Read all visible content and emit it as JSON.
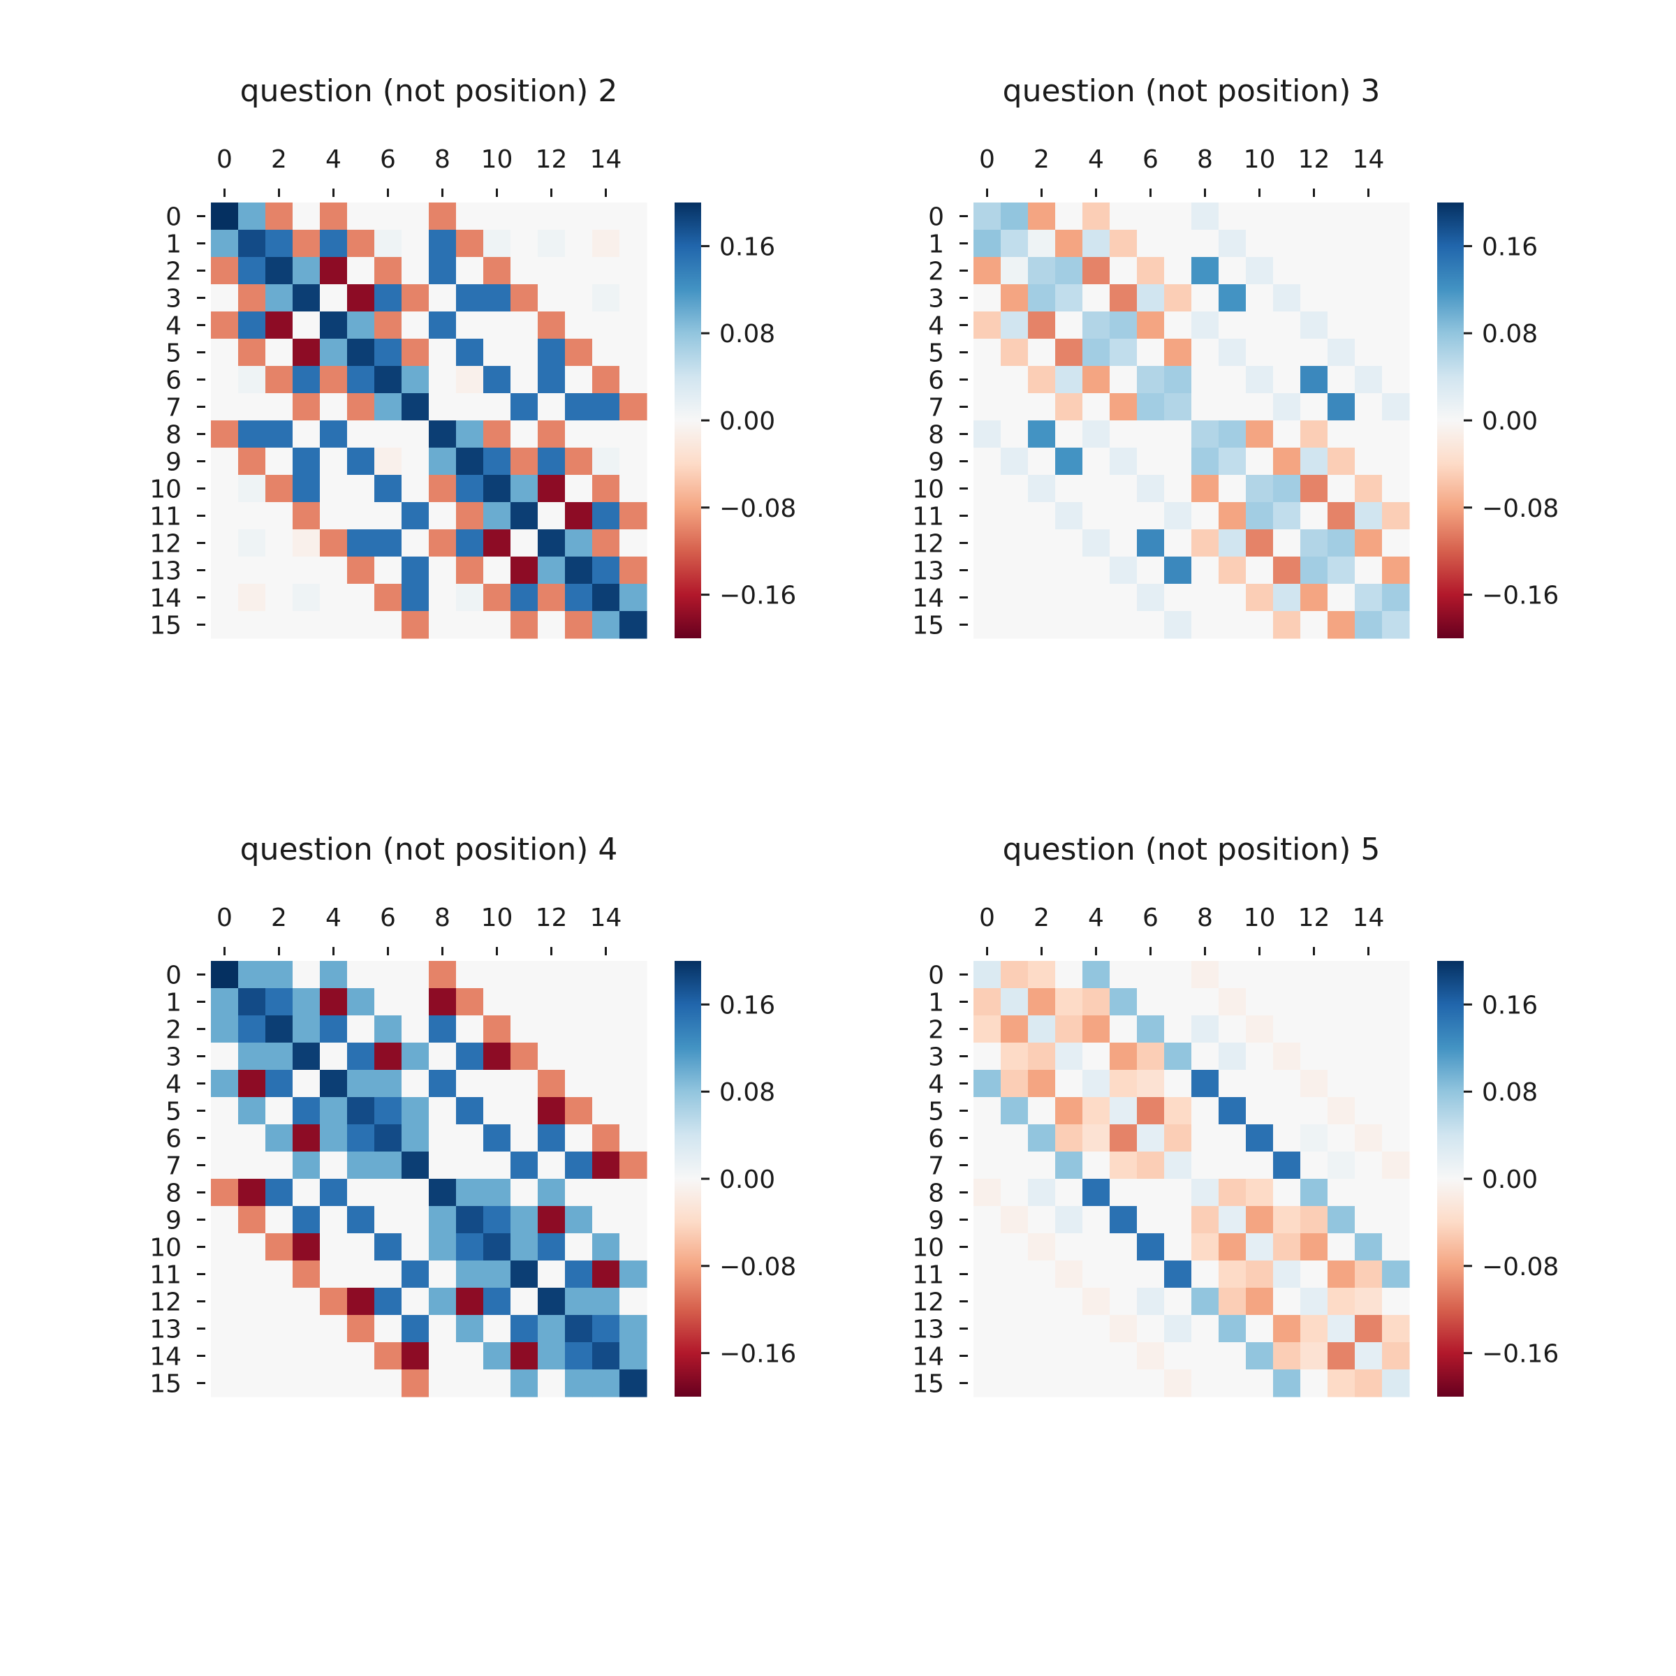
{
  "chart_data": [
    {
      "type": "heatmap",
      "title": "question (not position) 2",
      "x_ticks": [
        "0",
        "2",
        "4",
        "6",
        "8",
        "10",
        "12",
        "14"
      ],
      "y_ticks": [
        "0",
        "1",
        "2",
        "3",
        "4",
        "5",
        "6",
        "7",
        "8",
        "9",
        "10",
        "11",
        "12",
        "13",
        "14",
        "15"
      ],
      "colorbar_ticks": [
        "0.16",
        "0.08",
        "0.00",
        "−0.08",
        "−0.16"
      ],
      "vmin": -0.2,
      "vmax": 0.2,
      "colormap": "RdBu",
      "x_tick_position": "top",
      "values": [
        [
          0.2,
          0.1,
          -0.1,
          0,
          -0.1,
          0,
          0,
          0,
          -0.1,
          0,
          0,
          0,
          0,
          0,
          0,
          0
        ],
        [
          0.1,
          0.18,
          0.15,
          -0.1,
          0.15,
          -0.1,
          0.01,
          0,
          0.15,
          -0.1,
          0.01,
          0,
          0.01,
          0,
          -0.01,
          0
        ],
        [
          -0.1,
          0.15,
          0.19,
          0.1,
          -0.18,
          0,
          -0.1,
          0,
          0.15,
          0,
          -0.1,
          0,
          0,
          0,
          0,
          0
        ],
        [
          0,
          -0.1,
          0.1,
          0.19,
          0,
          -0.18,
          0.15,
          -0.1,
          0,
          0.15,
          0.15,
          -0.1,
          0,
          0,
          0.01,
          0
        ],
        [
          -0.1,
          0.15,
          -0.18,
          0,
          0.19,
          0.1,
          -0.1,
          0,
          0.15,
          0,
          0,
          0,
          -0.1,
          0,
          0,
          0
        ],
        [
          0,
          -0.1,
          0,
          -0.18,
          0.1,
          0.19,
          0.15,
          -0.1,
          0,
          0.15,
          0,
          0,
          0.15,
          -0.1,
          0,
          0
        ],
        [
          0,
          0.01,
          -0.1,
          0.15,
          -0.1,
          0.15,
          0.19,
          0.1,
          0,
          -0.01,
          0.15,
          0,
          0.15,
          0,
          -0.1,
          0
        ],
        [
          0,
          0,
          0,
          -0.1,
          0,
          -0.1,
          0.1,
          0.19,
          0,
          0,
          0,
          0.15,
          0,
          0.15,
          0.15,
          -0.1
        ],
        [
          -0.1,
          0.15,
          0.15,
          0,
          0.15,
          0,
          0,
          0,
          0.19,
          0.1,
          -0.1,
          0,
          -0.1,
          0,
          0,
          0
        ],
        [
          0,
          -0.1,
          0,
          0.15,
          0,
          0.15,
          -0.01,
          0,
          0.1,
          0.19,
          0.15,
          -0.1,
          0.15,
          -0.1,
          0.01,
          0
        ],
        [
          0,
          0.01,
          -0.1,
          0.15,
          0,
          0,
          0.15,
          0,
          -0.1,
          0.15,
          0.19,
          0.1,
          -0.18,
          0,
          -0.1,
          0
        ],
        [
          0,
          0,
          0,
          -0.1,
          0,
          0,
          0,
          0.15,
          0,
          -0.1,
          0.1,
          0.19,
          0,
          -0.18,
          0.15,
          -0.1
        ],
        [
          0,
          0.01,
          0,
          -0.01,
          -0.1,
          0.15,
          0.15,
          0,
          -0.1,
          0.15,
          -0.18,
          0,
          0.19,
          0.1,
          -0.1,
          0
        ],
        [
          0,
          0,
          0,
          0,
          0,
          -0.1,
          0,
          0.15,
          0,
          -0.1,
          0,
          -0.18,
          0.1,
          0.19,
          0.15,
          -0.1
        ],
        [
          0,
          -0.01,
          0,
          0.01,
          0,
          0,
          -0.1,
          0.15,
          0,
          0.01,
          -0.1,
          0.15,
          -0.1,
          0.15,
          0.19,
          0.1
        ],
        [
          0,
          0,
          0,
          0,
          0,
          0,
          0,
          -0.1,
          0,
          0,
          0,
          -0.1,
          0,
          -0.1,
          0.1,
          0.19
        ]
      ]
    },
    {
      "type": "heatmap",
      "title": "question (not position) 3",
      "x_ticks": [
        "0",
        "2",
        "4",
        "6",
        "8",
        "10",
        "12",
        "14"
      ],
      "y_ticks": [
        "0",
        "1",
        "2",
        "3",
        "4",
        "5",
        "6",
        "7",
        "8",
        "9",
        "10",
        "11",
        "12",
        "13",
        "14",
        "15"
      ],
      "colorbar_ticks": [
        "0.16",
        "0.08",
        "0.00",
        "−0.08",
        "−0.16"
      ],
      "vmin": -0.2,
      "vmax": 0.2,
      "colormap": "RdBu",
      "x_tick_position": "top",
      "values": [
        [
          0.06,
          0.08,
          -0.08,
          0,
          -0.05,
          0,
          0,
          0,
          0.02,
          0,
          0,
          0,
          0,
          0,
          0,
          0
        ],
        [
          0.08,
          0.05,
          0.01,
          -0.08,
          0.04,
          -0.05,
          0,
          0,
          0,
          0.02,
          0,
          0,
          0,
          0,
          0,
          0
        ],
        [
          -0.08,
          0.01,
          0.06,
          0.07,
          -0.1,
          0,
          -0.05,
          0,
          0.12,
          0,
          0.02,
          0,
          0,
          0,
          0,
          0
        ],
        [
          0,
          -0.08,
          0.07,
          0.05,
          0,
          -0.1,
          0.04,
          -0.05,
          0,
          0.12,
          0,
          0.02,
          0,
          0,
          0,
          0
        ],
        [
          -0.05,
          0.04,
          -0.1,
          0,
          0.06,
          0.07,
          -0.08,
          0,
          0.02,
          0,
          0,
          0,
          0.02,
          0,
          0,
          0
        ],
        [
          0,
          -0.05,
          0,
          -0.1,
          0.07,
          0.05,
          0,
          -0.08,
          0,
          0.02,
          0,
          0,
          0,
          0.02,
          0,
          0
        ],
        [
          0,
          0,
          -0.05,
          0.04,
          -0.08,
          0,
          0.06,
          0.07,
          0,
          0,
          0.02,
          0,
          0.13,
          0,
          0.02,
          0
        ],
        [
          0,
          0,
          0,
          -0.05,
          0,
          -0.08,
          0.07,
          0.06,
          0,
          0,
          0,
          0.02,
          0,
          0.13,
          0,
          0.02
        ],
        [
          0.02,
          0,
          0.12,
          0,
          0.02,
          0,
          0,
          0,
          0.06,
          0.07,
          -0.08,
          0,
          -0.05,
          0,
          0,
          0
        ],
        [
          0,
          0.02,
          0,
          0.12,
          0,
          0.02,
          0,
          0,
          0.07,
          0.05,
          0,
          -0.08,
          0.04,
          -0.05,
          0,
          0
        ],
        [
          0,
          0,
          0.02,
          0,
          0,
          0,
          0.02,
          0,
          -0.08,
          0,
          0.06,
          0.07,
          -0.1,
          0,
          -0.05,
          0
        ],
        [
          0,
          0,
          0,
          0.02,
          0,
          0,
          0,
          0.02,
          0,
          -0.08,
          0.07,
          0.05,
          0,
          -0.1,
          0.04,
          -0.05
        ],
        [
          0,
          0,
          0,
          0,
          0.02,
          0,
          0.13,
          0,
          -0.05,
          0.04,
          -0.1,
          0,
          0.06,
          0.07,
          -0.08,
          0
        ],
        [
          0,
          0,
          0,
          0,
          0,
          0.02,
          0,
          0.13,
          0,
          -0.05,
          0,
          -0.1,
          0.07,
          0.05,
          0,
          -0.08
        ],
        [
          0,
          0,
          0,
          0,
          0,
          0,
          0.02,
          0,
          0,
          0,
          -0.05,
          0.04,
          -0.08,
          0,
          0.05,
          0.07
        ],
        [
          0,
          0,
          0,
          0,
          0,
          0,
          0,
          0.02,
          0,
          0,
          0,
          -0.05,
          0,
          -0.08,
          0.07,
          0.05
        ]
      ]
    },
    {
      "type": "heatmap",
      "title": "question (not position) 4",
      "x_ticks": [
        "0",
        "2",
        "4",
        "6",
        "8",
        "10",
        "12",
        "14"
      ],
      "y_ticks": [
        "0",
        "1",
        "2",
        "3",
        "4",
        "5",
        "6",
        "7",
        "8",
        "9",
        "10",
        "11",
        "12",
        "13",
        "14",
        "15"
      ],
      "colorbar_ticks": [
        "0.16",
        "0.08",
        "0.00",
        "−0.08",
        "−0.16"
      ],
      "vmin": -0.2,
      "vmax": 0.2,
      "colormap": "RdBu",
      "x_tick_position": "top",
      "values": [
        [
          0.2,
          0.1,
          0.1,
          0,
          0.1,
          0,
          0,
          0,
          -0.1,
          0,
          0,
          0,
          0,
          0,
          0,
          0
        ],
        [
          0.1,
          0.18,
          0.15,
          0.1,
          -0.18,
          0.1,
          0,
          0,
          -0.18,
          -0.1,
          0,
          0,
          0,
          0,
          0,
          0
        ],
        [
          0.1,
          0.15,
          0.19,
          0.1,
          0.15,
          0,
          0.1,
          0,
          0.15,
          0,
          -0.1,
          0,
          0,
          0,
          0,
          0
        ],
        [
          0,
          0.1,
          0.1,
          0.19,
          0,
          0.15,
          -0.18,
          0.1,
          0,
          0.15,
          -0.18,
          -0.1,
          0,
          0,
          0,
          0
        ],
        [
          0.1,
          -0.18,
          0.15,
          0,
          0.19,
          0.1,
          0.1,
          0,
          0.15,
          0,
          0,
          0,
          -0.1,
          0,
          0,
          0
        ],
        [
          0,
          0.1,
          0,
          0.15,
          0.1,
          0.18,
          0.15,
          0.1,
          0,
          0.15,
          0,
          0,
          -0.18,
          -0.1,
          0,
          0
        ],
        [
          0,
          0,
          0.1,
          -0.18,
          0.1,
          0.15,
          0.18,
          0.1,
          0,
          0,
          0.15,
          0,
          0.15,
          0,
          -0.1,
          0
        ],
        [
          0,
          0,
          0,
          0.1,
          0,
          0.1,
          0.1,
          0.19,
          0,
          0,
          0,
          0.15,
          0,
          0.15,
          -0.18,
          -0.1
        ],
        [
          -0.1,
          -0.18,
          0.15,
          0,
          0.15,
          0,
          0,
          0,
          0.19,
          0.1,
          0.1,
          0,
          0.1,
          0,
          0,
          0
        ],
        [
          0,
          -0.1,
          0,
          0.15,
          0,
          0.15,
          0,
          0,
          0.1,
          0.18,
          0.15,
          0.1,
          -0.18,
          0.1,
          0,
          0
        ],
        [
          0,
          0,
          -0.1,
          -0.18,
          0,
          0,
          0.15,
          0,
          0.1,
          0.15,
          0.18,
          0.1,
          0.15,
          0,
          0.1,
          0
        ],
        [
          0,
          0,
          0,
          -0.1,
          0,
          0,
          0,
          0.15,
          0,
          0.1,
          0.1,
          0.19,
          0,
          0.15,
          -0.18,
          0.1
        ],
        [
          0,
          0,
          0,
          0,
          -0.1,
          -0.18,
          0.15,
          0,
          0.1,
          -0.18,
          0.15,
          0,
          0.19,
          0.1,
          0.1,
          0
        ],
        [
          0,
          0,
          0,
          0,
          0,
          -0.1,
          0,
          0.15,
          0,
          0.1,
          0,
          0.15,
          0.1,
          0.18,
          0.15,
          0.1
        ],
        [
          0,
          0,
          0,
          0,
          0,
          0,
          -0.1,
          -0.18,
          0,
          0,
          0.1,
          -0.18,
          0.1,
          0.15,
          0.18,
          0.1
        ],
        [
          0,
          0,
          0,
          0,
          0,
          0,
          0,
          -0.1,
          0,
          0,
          0,
          0.1,
          0,
          0.1,
          0.1,
          0.19
        ]
      ]
    },
    {
      "type": "heatmap",
      "title": "question (not position) 5",
      "x_ticks": [
        "0",
        "2",
        "4",
        "6",
        "8",
        "10",
        "12",
        "14"
      ],
      "y_ticks": [
        "0",
        "1",
        "2",
        "3",
        "4",
        "5",
        "6",
        "7",
        "8",
        "9",
        "10",
        "11",
        "12",
        "13",
        "14",
        "15"
      ],
      "colorbar_ticks": [
        "0.16",
        "0.08",
        "0.00",
        "−0.08",
        "−0.16"
      ],
      "vmin": -0.2,
      "vmax": 0.2,
      "colormap": "RdBu",
      "x_tick_position": "top",
      "values": [
        [
          0.03,
          -0.05,
          -0.04,
          0,
          0.08,
          0,
          0,
          0,
          -0.01,
          0,
          0,
          0,
          0,
          0,
          0,
          0
        ],
        [
          -0.05,
          0.03,
          -0.08,
          -0.04,
          -0.05,
          0.08,
          0,
          0,
          0,
          -0.01,
          0,
          0,
          0,
          0,
          0,
          0
        ],
        [
          -0.04,
          -0.08,
          0.03,
          -0.05,
          -0.08,
          0,
          0.08,
          0,
          0.02,
          0,
          -0.01,
          0,
          0,
          0,
          0,
          0
        ],
        [
          0,
          -0.04,
          -0.05,
          0.02,
          0,
          -0.08,
          -0.05,
          0.08,
          0,
          0.02,
          0,
          -0.01,
          0,
          0,
          0,
          0
        ],
        [
          0.08,
          -0.05,
          -0.08,
          0,
          0.02,
          -0.04,
          -0.03,
          0,
          0.15,
          0,
          0,
          0,
          -0.01,
          0,
          0,
          0
        ],
        [
          0,
          0.08,
          0,
          -0.08,
          -0.04,
          0.02,
          -0.1,
          -0.04,
          0,
          0.15,
          0,
          0,
          0,
          -0.01,
          0,
          0
        ],
        [
          0,
          0,
          0.08,
          -0.05,
          -0.03,
          -0.1,
          0.02,
          -0.05,
          0,
          0,
          0.15,
          0,
          0.01,
          0,
          -0.01,
          0
        ],
        [
          0,
          0,
          0,
          0.08,
          0,
          -0.04,
          -0.05,
          0.02,
          0,
          0,
          0,
          0.15,
          0,
          0.01,
          0,
          -0.01
        ],
        [
          -0.01,
          0,
          0.02,
          0,
          0.15,
          0,
          0,
          0,
          0.02,
          -0.05,
          -0.04,
          0,
          0.08,
          0,
          0,
          0
        ],
        [
          0,
          -0.01,
          0,
          0.02,
          0,
          0.15,
          0,
          0,
          -0.05,
          0.02,
          -0.08,
          -0.04,
          -0.05,
          0.08,
          0,
          0
        ],
        [
          0,
          0,
          -0.01,
          0,
          0,
          0,
          0.15,
          0,
          -0.04,
          -0.08,
          0.02,
          -0.05,
          -0.08,
          0,
          0.08,
          0
        ],
        [
          0,
          0,
          0,
          -0.01,
          0,
          0,
          0,
          0.15,
          0,
          -0.04,
          -0.05,
          0.02,
          0,
          -0.08,
          -0.05,
          0.08
        ],
        [
          0,
          0,
          0,
          0,
          -0.01,
          0,
          0.02,
          0,
          0.08,
          -0.05,
          -0.08,
          0,
          0.02,
          -0.04,
          -0.03,
          0
        ],
        [
          0,
          0,
          0,
          0,
          0,
          -0.01,
          0,
          0.02,
          0,
          0.08,
          0,
          -0.08,
          -0.04,
          0.02,
          -0.1,
          -0.04
        ],
        [
          0,
          0,
          0,
          0,
          0,
          0,
          -0.01,
          0,
          0,
          0,
          0.08,
          -0.05,
          -0.03,
          -0.1,
          0.02,
          -0.05
        ],
        [
          0,
          0,
          0,
          0,
          0,
          0,
          0,
          -0.01,
          0,
          0,
          0,
          0.08,
          0,
          -0.04,
          -0.05,
          0.03
        ]
      ]
    }
  ]
}
